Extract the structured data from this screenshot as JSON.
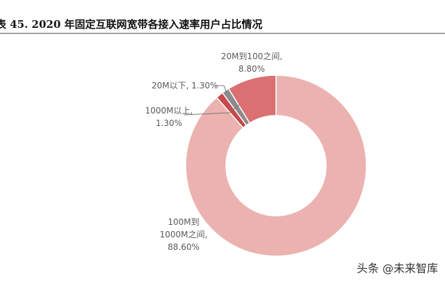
{
  "chart_data": {
    "type": "donut",
    "title": "表 45. 2020 年固定互联网宽带各接入速率用户占比情况",
    "categories": [
      "100M到1000M之间",
      "1000M以上",
      "20M以下",
      "20M到100之间"
    ],
    "values": [
      88.6,
      1.3,
      1.3,
      8.8
    ],
    "value_labels": [
      "88.60%",
      "1.30%",
      "1.30%",
      "8.80%"
    ],
    "separator": ",",
    "colors": [
      "#ebb2b0",
      "#c8484c",
      "#8c8c8c",
      "#da7072"
    ]
  },
  "watermark": "头条 @未来智库"
}
